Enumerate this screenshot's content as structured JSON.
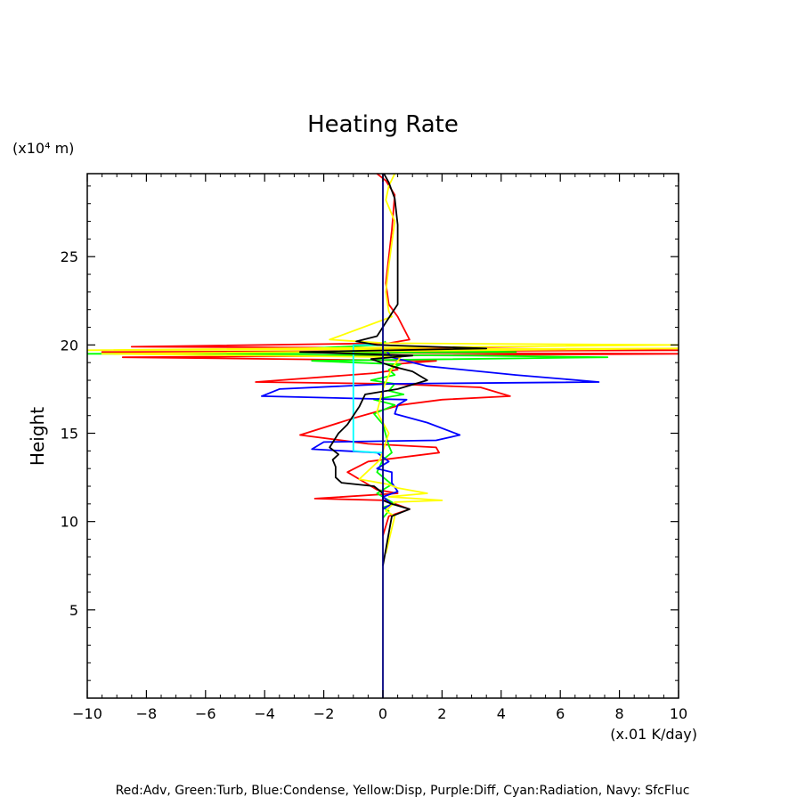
{
  "chart_data": {
    "type": "line",
    "title": "Heating Rate",
    "ylabel": "Height",
    "y_unit": "(x10⁴ m)",
    "x_unit": "(x.01 K/day)",
    "legend_text": "Red:Adv, Green:Turb, Blue:Condense, Yellow:Disp, Purple:Diff, Cyan:Radiation, Navy: SfcFluc",
    "xlim": [
      -10,
      10
    ],
    "ylim": [
      0,
      29.7
    ],
    "x_ticks": [
      -10,
      -8,
      -6,
      -4,
      -2,
      0,
      2,
      4,
      6,
      8,
      10
    ],
    "x_tick_labels": [
      "−10",
      "−8",
      "−6",
      "−4",
      "−2",
      "0",
      "2",
      "4",
      "6",
      "8",
      "10"
    ],
    "y_ticks": [
      5,
      10,
      15,
      20,
      25
    ],
    "y_tick_labels": [
      "5",
      "10",
      "15",
      "20",
      "25"
    ],
    "grid": false,
    "series": [
      {
        "key": "red",
        "color": "#ff0000",
        "points": [
          [
            -0.2,
            29.7
          ],
          [
            0.1,
            29.3
          ],
          [
            0.4,
            28.5
          ],
          [
            0.3,
            26.5
          ],
          [
            0.1,
            23.5
          ],
          [
            0.2,
            22.3
          ],
          [
            0.5,
            21.6
          ],
          [
            0.9,
            20.3
          ],
          [
            0.2,
            20.1
          ],
          [
            -8.5,
            19.9
          ],
          [
            3.5,
            19.8
          ],
          [
            10,
            19.7
          ],
          [
            -9.5,
            19.6
          ],
          [
            10,
            19.5
          ],
          [
            -8.8,
            19.3
          ],
          [
            1.8,
            19.1
          ],
          [
            0.3,
            18.9
          ],
          [
            0.5,
            18.6
          ],
          [
            -0.3,
            18.4
          ],
          [
            -4.3,
            17.9
          ],
          [
            0.2,
            17.8
          ],
          [
            3.3,
            17.6
          ],
          [
            4.3,
            17.1
          ],
          [
            2.0,
            16.9
          ],
          [
            0.6,
            16.6
          ],
          [
            -0.9,
            15.9
          ],
          [
            -2.8,
            14.9
          ],
          [
            -0.5,
            14.4
          ],
          [
            1.8,
            14.2
          ],
          [
            1.9,
            13.9
          ],
          [
            -0.5,
            13.4
          ],
          [
            -1.2,
            12.8
          ],
          [
            -0.7,
            12.3
          ],
          [
            -0.2,
            11.8
          ],
          [
            0.5,
            11.6
          ],
          [
            -2.3,
            11.3
          ],
          [
            0.1,
            11.2
          ],
          [
            0.9,
            10.7
          ],
          [
            0.2,
            10.3
          ],
          [
            0,
            9.2
          ]
        ]
      },
      {
        "key": "green",
        "color": "#00ff00",
        "points": [
          [
            0.1,
            20.2
          ],
          [
            -0.1,
            20.0
          ],
          [
            -2.5,
            19.8
          ],
          [
            4.5,
            19.6
          ],
          [
            -10,
            19.5
          ],
          [
            3.0,
            19.4
          ],
          [
            7.6,
            19.3
          ],
          [
            -2.4,
            19.1
          ],
          [
            0.6,
            18.9
          ],
          [
            0.2,
            18.6
          ],
          [
            0.4,
            18.3
          ],
          [
            -0.4,
            18.0
          ],
          [
            0.4,
            17.8
          ],
          [
            0.2,
            17.4
          ],
          [
            0.7,
            17.2
          ],
          [
            -0.3,
            16.9
          ],
          [
            0.4,
            16.6
          ],
          [
            -0.3,
            16.1
          ],
          [
            0,
            15.5
          ],
          [
            0.2,
            14.3
          ],
          [
            0.3,
            13.9
          ],
          [
            0,
            13.5
          ],
          [
            -0.2,
            12.8
          ],
          [
            0.3,
            12.1
          ],
          [
            -0.2,
            11.6
          ],
          [
            0.4,
            11.0
          ],
          [
            0,
            10.8
          ],
          [
            0.2,
            10.6
          ],
          [
            0,
            10.2
          ]
        ]
      },
      {
        "key": "blue",
        "color": "#0000ff",
        "points": [
          [
            0,
            19.9
          ],
          [
            0.3,
            19.3
          ],
          [
            1.5,
            18.8
          ],
          [
            4.5,
            18.3
          ],
          [
            7.3,
            17.9
          ],
          [
            0.3,
            17.8
          ],
          [
            -3.5,
            17.5
          ],
          [
            -4.1,
            17.1
          ],
          [
            0.8,
            16.9
          ],
          [
            0.5,
            16.6
          ],
          [
            0.4,
            16.1
          ],
          [
            1.5,
            15.6
          ],
          [
            2.6,
            14.9
          ],
          [
            1.8,
            14.6
          ],
          [
            -2.0,
            14.5
          ],
          [
            -2.4,
            14.1
          ],
          [
            -0.2,
            13.9
          ],
          [
            0.2,
            13.4
          ],
          [
            -0.2,
            13.0
          ],
          [
            0.3,
            12.8
          ],
          [
            0.3,
            12.2
          ],
          [
            0.5,
            11.7
          ],
          [
            0,
            11.4
          ],
          [
            0.3,
            11.0
          ],
          [
            0,
            10.7
          ]
        ]
      },
      {
        "key": "yellow",
        "color": "#ffff00",
        "points": [
          [
            0.4,
            29.7
          ],
          [
            0.2,
            29.0
          ],
          [
            0.1,
            28.2
          ],
          [
            0.4,
            27.0
          ],
          [
            0.2,
            24.5
          ],
          [
            0.1,
            23.0
          ],
          [
            0.2,
            21.9
          ],
          [
            0.3,
            21.6
          ],
          [
            -1.8,
            20.3
          ],
          [
            0.1,
            20.1
          ],
          [
            10,
            20.0
          ],
          [
            -10,
            19.7
          ],
          [
            10,
            19.8
          ],
          [
            -9.5,
            19.5
          ],
          [
            0.6,
            19.3
          ],
          [
            0.3,
            18.7
          ],
          [
            0,
            17.5
          ],
          [
            -0.2,
            16.2
          ],
          [
            0.2,
            15.0
          ],
          [
            -0.1,
            13.5
          ],
          [
            -0.8,
            12.4
          ],
          [
            0.2,
            12.1
          ],
          [
            0.5,
            11.9
          ],
          [
            1.5,
            11.6
          ],
          [
            0.2,
            11.4
          ],
          [
            2.0,
            11.2
          ],
          [
            0.4,
            11.1
          ],
          [
            0.1,
            10.6
          ],
          [
            0.4,
            10.3
          ],
          [
            0.2,
            8.9
          ],
          [
            0.1,
            8.2
          ]
        ]
      },
      {
        "key": "cyan",
        "color": "#00ffff",
        "points": [
          [
            0,
            20.0
          ],
          [
            -1.0,
            20.0
          ],
          [
            -1.0,
            14.0
          ],
          [
            -0.2,
            13.9
          ],
          [
            0,
            13.9
          ]
        ]
      },
      {
        "key": "black",
        "color": "#000000",
        "points": [
          [
            0,
            29.8
          ],
          [
            0.2,
            29.2
          ],
          [
            0.4,
            28.3
          ],
          [
            0.5,
            26.8
          ],
          [
            0.5,
            22.3
          ],
          [
            0.3,
            21.8
          ],
          [
            -0.2,
            20.5
          ],
          [
            -0.9,
            20.2
          ],
          [
            -0.2,
            20.0
          ],
          [
            3.5,
            19.8
          ],
          [
            -2.8,
            19.6
          ],
          [
            1.0,
            19.4
          ],
          [
            -0.4,
            19.2
          ],
          [
            0.3,
            18.8
          ],
          [
            1.0,
            18.5
          ],
          [
            1.5,
            18.0
          ],
          [
            0.5,
            17.5
          ],
          [
            -0.6,
            17.2
          ],
          [
            -0.8,
            16.5
          ],
          [
            -1.2,
            15.5
          ],
          [
            -1.5,
            15.0
          ],
          [
            -1.8,
            14.2
          ],
          [
            -1.5,
            13.8
          ],
          [
            -1.7,
            13.5
          ],
          [
            -1.6,
            13.1
          ],
          [
            -1.6,
            12.5
          ],
          [
            -1.4,
            12.2
          ],
          [
            -0.3,
            12.0
          ],
          [
            0,
            11.6
          ],
          [
            0,
            11.2
          ],
          [
            0.3,
            11.0
          ],
          [
            0.9,
            10.7
          ],
          [
            0.3,
            10.3
          ],
          [
            0,
            7.5
          ]
        ]
      },
      {
        "key": "navy",
        "color": "#000080",
        "points": [
          [
            0,
            0
          ],
          [
            0,
            29.8
          ]
        ]
      }
    ]
  }
}
